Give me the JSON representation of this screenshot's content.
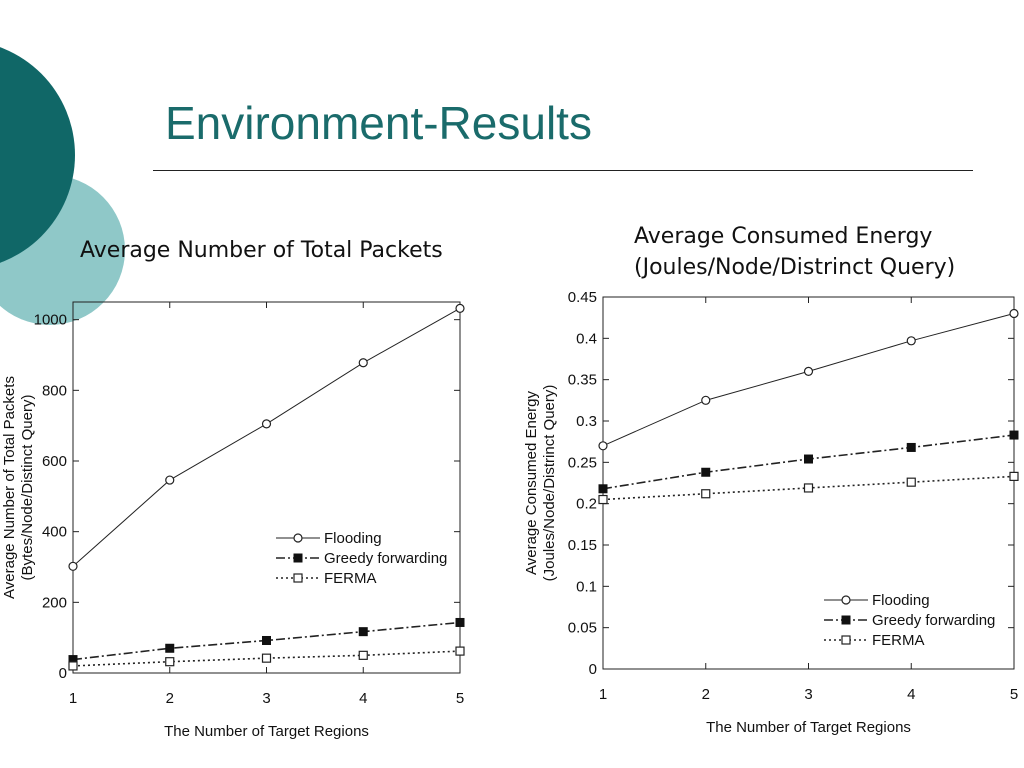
{
  "slide": {
    "title": "Environment-Results",
    "accent_color": "#1a6b6b",
    "accent_light": "#8fc8c8"
  },
  "captions": {
    "left": "Average Number of Total Packets",
    "right": "Average Consumed Energy (Joules/Node/Distrinct Query)"
  },
  "chart_data": [
    {
      "type": "line",
      "x": [
        1,
        2,
        3,
        4,
        5
      ],
      "xlabel": "The Number of Target Regions",
      "ylabel": "Average Number of Total Packets (Bytes/Node/Distinct Query)",
      "ylim": [
        0,
        1050
      ],
      "yticks": [
        0,
        200,
        400,
        600,
        800,
        1000
      ],
      "xticks": [
        1,
        2,
        3,
        4,
        5
      ],
      "legend_position": "center-right",
      "series": [
        {
          "name": "Flooding",
          "marker": "open-circle",
          "style": "solid",
          "values": [
            302,
            546,
            705,
            878,
            1032
          ]
        },
        {
          "name": "Greedy forwarding",
          "marker": "filled-square",
          "style": "dashdot",
          "values": [
            38,
            70,
            92,
            117,
            143
          ]
        },
        {
          "name": "FERMA",
          "marker": "open-square",
          "style": "dotted",
          "values": [
            20,
            32,
            42,
            50,
            62
          ]
        }
      ]
    },
    {
      "type": "line",
      "x": [
        1,
        2,
        3,
        4,
        5
      ],
      "xlabel": "The Number of Target Regions",
      "ylabel": "Average Consumed Energy (Joules/Node/Distrinct Query)",
      "ylim": [
        0,
        0.45
      ],
      "yticks": [
        0,
        0.05,
        0.1,
        0.15,
        0.2,
        0.25,
        0.3,
        0.35,
        0.4,
        0.45
      ],
      "xticks": [
        1,
        2,
        3,
        4,
        5
      ],
      "legend_position": "bottom-right",
      "series": [
        {
          "name": "Flooding",
          "marker": "open-circle",
          "style": "solid",
          "values": [
            0.27,
            0.325,
            0.36,
            0.397,
            0.43
          ]
        },
        {
          "name": "Greedy forwarding",
          "marker": "filled-square",
          "style": "dashdot",
          "values": [
            0.218,
            0.238,
            0.254,
            0.268,
            0.283
          ]
        },
        {
          "name": "FERMA",
          "marker": "open-square",
          "style": "dotted",
          "values": [
            0.205,
            0.212,
            0.219,
            0.226,
            0.233
          ]
        }
      ]
    }
  ]
}
